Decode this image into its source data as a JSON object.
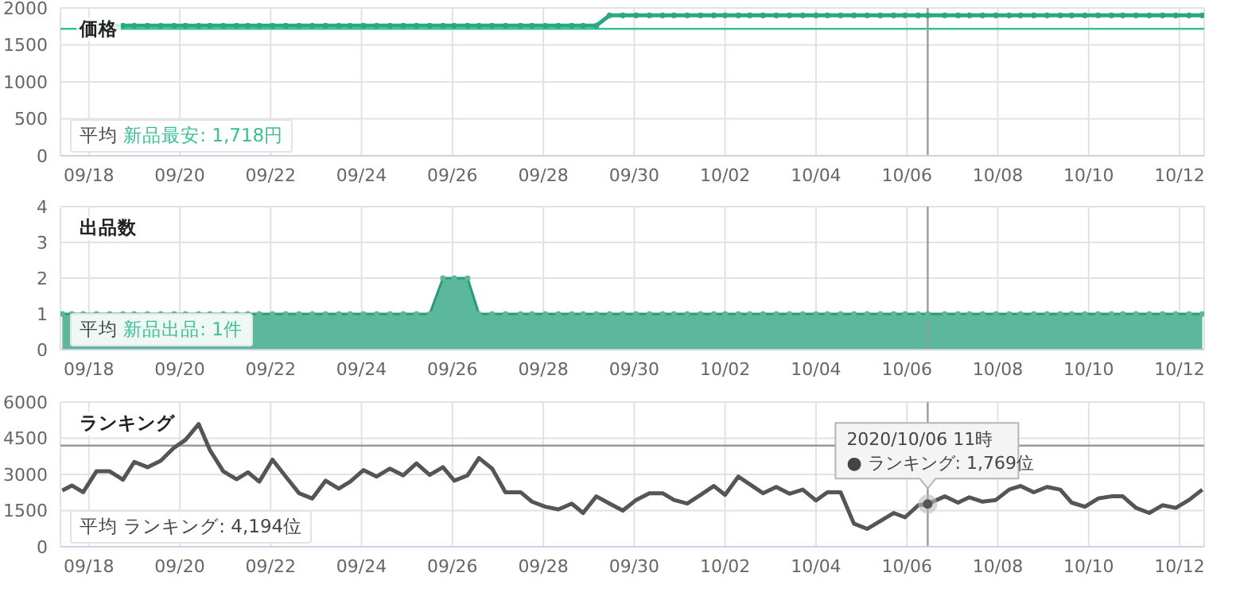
{
  "chart_data": [
    {
      "type": "line",
      "title": "価格",
      "x": [
        "2020-09-18T11:00",
        "2020-09-18T18:00",
        "2020-09-19T00:00",
        "2020-09-19T07:00",
        "2020-09-19T14:00",
        "2020-09-19T21:00",
        "2020-09-20T03:00",
        "2020-09-20T10:00",
        "2020-09-20T16:00",
        "2020-09-20T23:00",
        "2020-09-21T06:00",
        "2020-09-21T12:00",
        "2020-09-21T18:00",
        "2020-09-22T01:00",
        "2020-09-22T08:00",
        "2020-09-22T15:00",
        "2020-09-22T22:00",
        "2020-09-23T05:00",
        "2020-09-23T12:00",
        "2020-09-23T18:00",
        "2020-09-24T01:00",
        "2020-09-24T08:00",
        "2020-09-24T15:00",
        "2020-09-24T22:00",
        "2020-09-25T05:00",
        "2020-09-25T12:00",
        "2020-09-25T19:00",
        "2020-09-26T01:00",
        "2020-09-26T08:00",
        "2020-09-26T14:00",
        "2020-09-26T21:00",
        "2020-09-27T04:00",
        "2020-09-27T12:00",
        "2020-09-27T18:00",
        "2020-09-28T01:00",
        "2020-09-28T08:00",
        "2020-09-28T15:00",
        "2020-09-28T21:00",
        "2020-09-29T04:00",
        "2020-09-29T11:00",
        "2020-09-29T18:00",
        "2020-09-30T01:00",
        "2020-09-30T08:00",
        "2020-09-30T15:00",
        "2020-09-30T21:00",
        "2020-10-01T04:00",
        "2020-10-01T11:00",
        "2020-10-01T18:00",
        "2020-10-02T00:00",
        "2020-10-02T07:00",
        "2020-10-02T13:00",
        "2020-10-02T20:00",
        "2020-10-03T03:00",
        "2020-10-03T10:00",
        "2020-10-03T17:00",
        "2020-10-04T00:00",
        "2020-10-04T06:00",
        "2020-10-04T13:00",
        "2020-10-04T20:00",
        "2020-10-05T03:00",
        "2020-10-05T10:00",
        "2020-10-05T17:00",
        "2020-10-05T23:00",
        "2020-10-06T06:00",
        "2020-10-06T11:00",
        "2020-10-06T20:00",
        "2020-10-07T03:00",
        "2020-10-07T09:00",
        "2020-10-07T16:00",
        "2020-10-07T23:00",
        "2020-10-08T06:00",
        "2020-10-08T12:00",
        "2020-10-08T19:00",
        "2020-10-09T02:00",
        "2020-10-09T09:00",
        "2020-10-09T15:00",
        "2020-10-09T22:00",
        "2020-10-10T05:00",
        "2020-10-10T12:00",
        "2020-10-10T18:00",
        "2020-10-11T01:00",
        "2020-10-11T08:00",
        "2020-10-11T15:00",
        "2020-10-11T22:00",
        "2020-10-12T05:00",
        "2020-10-12T12:00"
      ],
      "series": [
        {
          "color": "#2aa882",
          "marker": "circle",
          "values": [
            1760,
            1760,
            1760,
            1760,
            1760,
            1760,
            1760,
            1760,
            1760,
            1760,
            1760,
            1760,
            1760,
            1760,
            1760,
            1760,
            1760,
            1760,
            1760,
            1760,
            1760,
            1760,
            1760,
            1760,
            1760,
            1760,
            1760,
            1760,
            1760,
            1760,
            1760,
            1760,
            1760,
            1760,
            1760,
            1760,
            1760,
            1760,
            1760,
            1900,
            1900,
            1900,
            1900,
            1900,
            1900,
            1900,
            1900,
            1900,
            1900,
            1900,
            1900,
            1900,
            1900,
            1900,
            1900,
            1900,
            1900,
            1900,
            1900,
            1900,
            1900,
            1900,
            1900,
            1900,
            1900,
            1900,
            1900,
            1900,
            1900,
            1900,
            1900,
            1900,
            1900,
            1900,
            1900,
            1900,
            1900,
            1900,
            1900,
            1900,
            1900,
            1900,
            1900,
            1900,
            1900,
            1900
          ]
        }
      ],
      "xlim": [
        "2020-09-17T09:00",
        "2020-10-12T13:00"
      ],
      "xticks": [
        {
          "value": "2020-09-18",
          "label": "09/18"
        },
        {
          "value": "2020-09-20",
          "label": "09/20"
        },
        {
          "value": "2020-09-22",
          "label": "09/22"
        },
        {
          "value": "2020-09-24",
          "label": "09/24"
        },
        {
          "value": "2020-09-26",
          "label": "09/26"
        },
        {
          "value": "2020-09-28",
          "label": "09/28"
        },
        {
          "value": "2020-09-30",
          "label": "09/30"
        },
        {
          "value": "2020-10-02",
          "label": "10/02"
        },
        {
          "value": "2020-10-04",
          "label": "10/04"
        },
        {
          "value": "2020-10-06",
          "label": "10/06"
        },
        {
          "value": "2020-10-08",
          "label": "10/08"
        },
        {
          "value": "2020-10-10",
          "label": "10/10"
        },
        {
          "value": "2020-10-12",
          "label": "10/12"
        }
      ],
      "ylim": [
        0,
        2000
      ],
      "yticks": [
        0,
        500,
        1000,
        1500,
        2000
      ],
      "grid": true,
      "legend": false,
      "annotations": [
        "平均 新品最安: 1,718円"
      ],
      "ref_lines": [
        {
          "axis": "y",
          "value": 1718,
          "label": null,
          "color": "#3bbf94"
        },
        {
          "axis": "x",
          "value": "2020-10-06T11:00",
          "label": null,
          "color": "#9a9a9a"
        }
      ]
    },
    {
      "type": "area",
      "title": "出品数",
      "x": [
        "2020-09-17T10:00",
        "2020-09-17T15:00",
        "2020-09-17T21:00",
        "2020-09-18T04:00",
        "2020-09-18T11:00",
        "2020-09-18T18:00",
        "2020-09-19T00:00",
        "2020-09-19T07:00",
        "2020-09-19T14:00",
        "2020-09-19T21:00",
        "2020-09-20T03:00",
        "2020-09-20T10:00",
        "2020-09-20T16:00",
        "2020-09-20T23:00",
        "2020-09-21T06:00",
        "2020-09-21T12:00",
        "2020-09-21T18:00",
        "2020-09-22T01:00",
        "2020-09-22T08:00",
        "2020-09-22T15:00",
        "2020-09-22T22:00",
        "2020-09-23T05:00",
        "2020-09-23T12:00",
        "2020-09-23T18:00",
        "2020-09-24T01:00",
        "2020-09-24T08:00",
        "2020-09-24T15:00",
        "2020-09-24T22:00",
        "2020-09-25T05:00",
        "2020-09-25T12:00",
        "2020-09-25T19:00",
        "2020-09-26T01:00",
        "2020-09-26T08:00",
        "2020-09-26T14:00",
        "2020-09-26T21:00",
        "2020-09-27T04:00",
        "2020-09-27T12:00",
        "2020-09-27T18:00",
        "2020-09-28T01:00",
        "2020-09-28T08:00",
        "2020-09-28T15:00",
        "2020-09-28T21:00",
        "2020-09-29T04:00",
        "2020-09-29T11:00",
        "2020-09-29T18:00",
        "2020-09-30T01:00",
        "2020-09-30T08:00",
        "2020-09-30T15:00",
        "2020-09-30T21:00",
        "2020-10-01T04:00",
        "2020-10-01T11:00",
        "2020-10-01T18:00",
        "2020-10-02T00:00",
        "2020-10-02T07:00",
        "2020-10-02T13:00",
        "2020-10-02T20:00",
        "2020-10-03T03:00",
        "2020-10-03T10:00",
        "2020-10-03T17:00",
        "2020-10-04T00:00",
        "2020-10-04T06:00",
        "2020-10-04T13:00",
        "2020-10-04T20:00",
        "2020-10-05T03:00",
        "2020-10-05T10:00",
        "2020-10-05T17:00",
        "2020-10-05T23:00",
        "2020-10-06T06:00",
        "2020-10-06T11:00",
        "2020-10-06T20:00",
        "2020-10-07T03:00",
        "2020-10-07T09:00",
        "2020-10-07T16:00",
        "2020-10-07T23:00",
        "2020-10-08T06:00",
        "2020-10-08T12:00",
        "2020-10-08T19:00",
        "2020-10-09T02:00",
        "2020-10-09T09:00",
        "2020-10-09T15:00",
        "2020-10-09T22:00",
        "2020-10-10T05:00",
        "2020-10-10T12:00",
        "2020-10-10T18:00",
        "2020-10-11T01:00",
        "2020-10-11T08:00",
        "2020-10-11T15:00",
        "2020-10-11T22:00",
        "2020-10-12T05:00",
        "2020-10-12T12:00"
      ],
      "series": [
        {
          "color": "#5bb89b",
          "marker": "circle",
          "values": [
            1,
            1,
            1,
            1,
            1,
            1,
            1,
            1,
            1,
            1,
            1,
            1,
            1,
            1,
            1,
            1,
            1,
            1,
            1,
            1,
            1,
            1,
            1,
            1,
            1,
            1,
            1,
            1,
            1,
            1,
            2,
            2,
            2,
            1,
            1,
            1,
            1,
            1,
            1,
            1,
            1,
            1,
            1,
            1,
            1,
            1,
            1,
            1,
            1,
            1,
            1,
            1,
            1,
            1,
            1,
            1,
            1,
            1,
            1,
            1,
            1,
            1,
            1,
            1,
            1,
            1,
            1,
            1,
            1,
            1,
            1,
            1,
            1,
            1,
            1,
            1,
            1,
            1,
            1,
            1,
            1,
            1,
            1,
            1,
            1,
            1,
            1,
            1,
            1,
            1
          ]
        }
      ],
      "xlim": [
        "2020-09-17T09:00",
        "2020-10-12T13:00"
      ],
      "xticks": [
        {
          "value": "2020-09-18",
          "label": "09/18"
        },
        {
          "value": "2020-09-20",
          "label": "09/20"
        },
        {
          "value": "2020-09-22",
          "label": "09/22"
        },
        {
          "value": "2020-09-24",
          "label": "09/24"
        },
        {
          "value": "2020-09-26",
          "label": "09/26"
        },
        {
          "value": "2020-09-28",
          "label": "09/28"
        },
        {
          "value": "2020-09-30",
          "label": "09/30"
        },
        {
          "value": "2020-10-02",
          "label": "10/02"
        },
        {
          "value": "2020-10-04",
          "label": "10/04"
        },
        {
          "value": "2020-10-06",
          "label": "10/06"
        },
        {
          "value": "2020-10-08",
          "label": "10/08"
        },
        {
          "value": "2020-10-10",
          "label": "10/10"
        },
        {
          "value": "2020-10-12",
          "label": "10/12"
        }
      ],
      "ylim": [
        0,
        4
      ],
      "yticks": [
        0,
        1,
        2,
        3,
        4
      ],
      "grid": true,
      "legend": false,
      "annotations": [
        "平均 新品出品: 1件"
      ],
      "ref_lines": [
        {
          "axis": "x",
          "value": "2020-10-06T11:00",
          "label": null,
          "color": "#9a9a9a"
        }
      ]
    },
    {
      "type": "line",
      "title": "ランキング",
      "x": [
        "2020-09-17T10:00",
        "2020-09-17T15:00",
        "2020-09-17T21:00",
        "2020-09-18T04:00",
        "2020-09-18T11:00",
        "2020-09-18T18:00",
        "2020-09-19T00:00",
        "2020-09-19T07:00",
        "2020-09-19T14:00",
        "2020-09-19T21:00",
        "2020-09-20T03:00",
        "2020-09-20T10:00",
        "2020-09-20T16:00",
        "2020-09-20T23:00",
        "2020-09-21T06:00",
        "2020-09-21T12:00",
        "2020-09-21T18:00",
        "2020-09-22T01:00",
        "2020-09-22T08:00",
        "2020-09-22T15:00",
        "2020-09-22T22:00",
        "2020-09-23T05:00",
        "2020-09-23T12:00",
        "2020-09-23T18:00",
        "2020-09-24T01:00",
        "2020-09-24T08:00",
        "2020-09-24T15:00",
        "2020-09-24T22:00",
        "2020-09-25T05:00",
        "2020-09-25T12:00",
        "2020-09-25T19:00",
        "2020-09-26T01:00",
        "2020-09-26T08:00",
        "2020-09-26T14:00",
        "2020-09-26T21:00",
        "2020-09-27T04:00",
        "2020-09-27T12:00",
        "2020-09-27T18:00",
        "2020-09-28T01:00",
        "2020-09-28T08:00",
        "2020-09-28T15:00",
        "2020-09-28T21:00",
        "2020-09-29T04:00",
        "2020-09-29T11:00",
        "2020-09-29T18:00",
        "2020-09-30T01:00",
        "2020-09-30T08:00",
        "2020-09-30T15:00",
        "2020-09-30T21:00",
        "2020-10-01T04:00",
        "2020-10-01T11:00",
        "2020-10-01T18:00",
        "2020-10-02T00:00",
        "2020-10-02T07:00",
        "2020-10-02T13:00",
        "2020-10-02T20:00",
        "2020-10-03T03:00",
        "2020-10-03T10:00",
        "2020-10-03T17:00",
        "2020-10-04T00:00",
        "2020-10-04T06:00",
        "2020-10-04T13:00",
        "2020-10-04T20:00",
        "2020-10-05T03:00",
        "2020-10-05T10:00",
        "2020-10-05T17:00",
        "2020-10-05T23:00",
        "2020-10-06T06:00",
        "2020-10-06T11:00",
        "2020-10-06T20:00",
        "2020-10-07T03:00",
        "2020-10-07T09:00",
        "2020-10-07T16:00",
        "2020-10-07T23:00",
        "2020-10-08T06:00",
        "2020-10-08T12:00",
        "2020-10-08T19:00",
        "2020-10-09T02:00",
        "2020-10-09T09:00",
        "2020-10-09T15:00",
        "2020-10-09T22:00",
        "2020-10-10T05:00",
        "2020-10-10T12:00",
        "2020-10-10T18:00",
        "2020-10-11T01:00",
        "2020-10-11T08:00",
        "2020-10-11T15:00",
        "2020-10-11T22:00",
        "2020-10-12T05:00",
        "2020-10-12T12:00"
      ],
      "series": [
        {
          "color": "#555555",
          "marker": "none",
          "values": [
            2330,
            2540,
            2260,
            3130,
            3130,
            2780,
            3520,
            3300,
            3570,
            4110,
            4430,
            5090,
            4000,
            3130,
            2800,
            3090,
            2700,
            3610,
            2910,
            2220,
            2000,
            2740,
            2410,
            2700,
            3180,
            2910,
            3240,
            2960,
            3460,
            2980,
            3300,
            2740,
            2960,
            3680,
            3240,
            2260,
            2260,
            1870,
            1660,
            1550,
            1790,
            1400,
            2090,
            1790,
            1500,
            1940,
            2220,
            2220,
            1940,
            1790,
            2150,
            2520,
            2150,
            2910,
            2590,
            2220,
            2480,
            2200,
            2370,
            1920,
            2260,
            2260,
            960,
            740,
            1070,
            1400,
            1220,
            1720,
            1769,
            2090,
            1830,
            2050,
            1870,
            1940,
            2370,
            2520,
            2260,
            2480,
            2370,
            1830,
            1660,
            2000,
            2090,
            2090,
            1610,
            1400,
            1720,
            1610,
            1940,
            2370
          ]
        }
      ],
      "xlim": [
        "2020-09-17T09:00",
        "2020-10-12T13:00"
      ],
      "xticks": [
        {
          "value": "2020-09-18",
          "label": "09/18"
        },
        {
          "value": "2020-09-20",
          "label": "09/20"
        },
        {
          "value": "2020-09-22",
          "label": "09/22"
        },
        {
          "value": "2020-09-24",
          "label": "09/24"
        },
        {
          "value": "2020-09-26",
          "label": "09/26"
        },
        {
          "value": "2020-09-28",
          "label": "09/28"
        },
        {
          "value": "2020-09-30",
          "label": "09/30"
        },
        {
          "value": "2020-10-02",
          "label": "10/02"
        },
        {
          "value": "2020-10-04",
          "label": "10/04"
        },
        {
          "value": "2020-10-06",
          "label": "10/06"
        },
        {
          "value": "2020-10-08",
          "label": "10/08"
        },
        {
          "value": "2020-10-10",
          "label": "10/10"
        },
        {
          "value": "2020-10-12",
          "label": "10/12"
        }
      ],
      "ylim": [
        0,
        6000
      ],
      "yticks": [
        0,
        1500,
        3000,
        4500,
        6000
      ],
      "grid": true,
      "legend": false,
      "ref_lines": [
        {
          "axis": "y",
          "value": 4194,
          "label": null,
          "color": "#999999"
        },
        {
          "axis": "x",
          "value": "2020-10-06T11:00",
          "label": null,
          "color": "#9a9a9a"
        }
      ],
      "annotations": [
        "平均 ランキング: 4,194位",
        "2020/10/06 11時",
        {
          "text": "● ランキング: 1,769位",
          "x": "2020-10-06T11:00",
          "y": 1769
        }
      ]
    }
  ]
}
